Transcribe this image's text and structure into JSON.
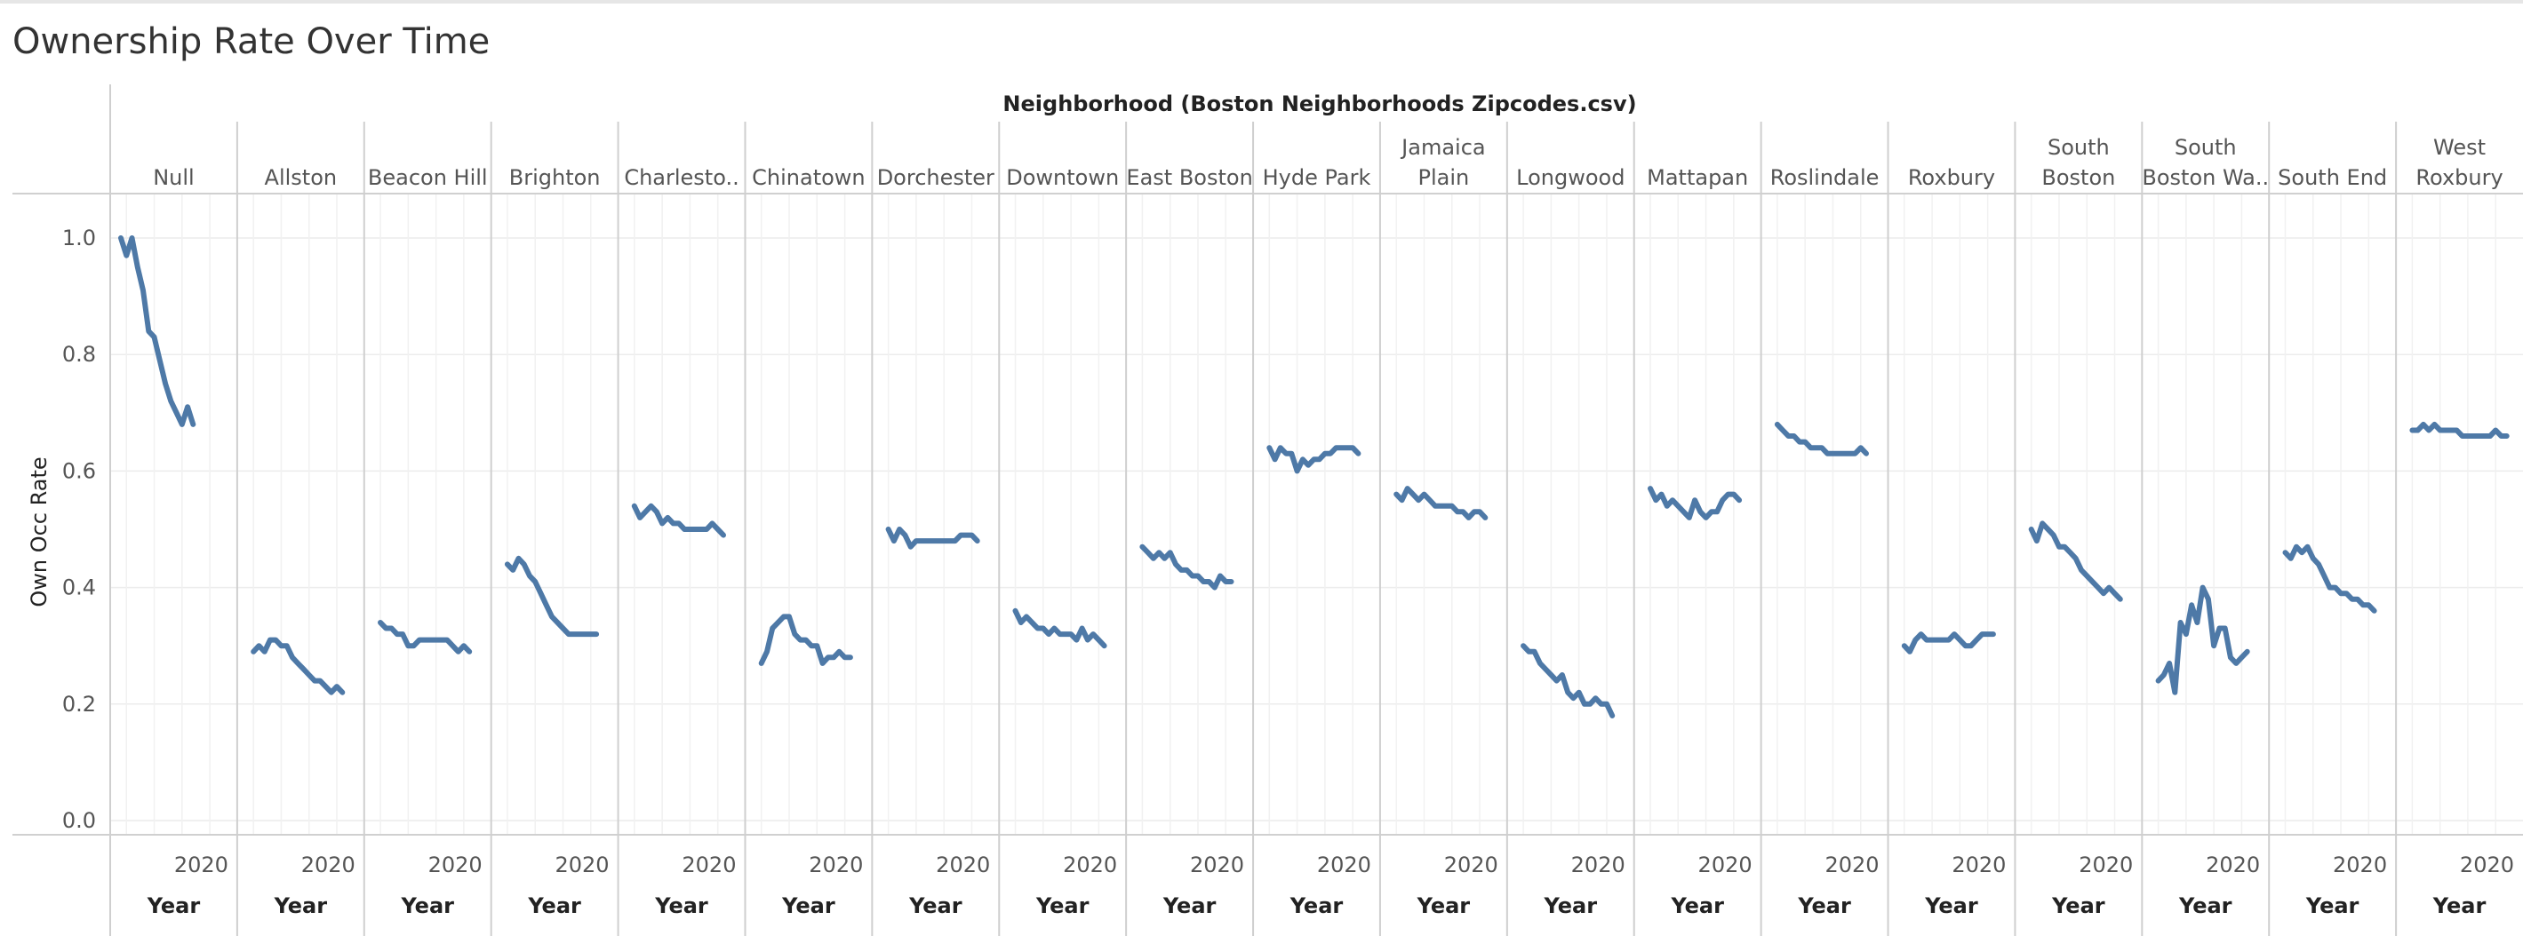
{
  "title": "Ownership Rate Over Time",
  "chart_data": {
    "type": "line",
    "title": "Ownership Rate Over Time",
    "column_dimension_title": "Neighborhood (Boston Neighborhoods Zipcodes.csv)",
    "ylabel": "Own Occ Rate",
    "xlabel": "Year",
    "ylim": [
      0,
      1.05
    ],
    "y_ticks": [
      "1.0",
      "0.8",
      "0.6",
      "0.4",
      "0.2",
      "0.0"
    ],
    "x_tick_label": "2020",
    "x_range": [
      2004,
      2023
    ],
    "grid": true,
    "line_color": "#4e79a7",
    "series": [
      {
        "name": "Null",
        "x": [
          2004,
          2005,
          2006,
          2007,
          2008,
          2009,
          2010,
          2011,
          2012,
          2013,
          2014,
          2015,
          2016,
          2017,
          2018,
          2019,
          2020,
          2021
        ],
        "values": [
          1.0,
          0.97,
          1.0,
          0.95,
          0.91,
          0.84,
          0.83,
          0.79,
          0.75,
          0.72,
          0.7,
          0.68,
          0.71,
          0.68,
          null,
          null,
          null,
          null
        ]
      },
      {
        "name": "Allston",
        "x": [
          2005,
          2006,
          2007,
          2008,
          2009,
          2010,
          2011,
          2012,
          2013,
          2014,
          2015,
          2016,
          2017,
          2018,
          2019,
          2020,
          2021
        ],
        "values": [
          0.29,
          0.3,
          0.29,
          0.31,
          0.31,
          0.3,
          0.3,
          0.28,
          0.27,
          0.26,
          0.25,
          0.24,
          0.24,
          0.23,
          0.22,
          0.23,
          0.22
        ]
      },
      {
        "name": "Beacon Hill",
        "x": [
          2005,
          2006,
          2007,
          2008,
          2009,
          2010,
          2011,
          2012,
          2013,
          2014,
          2015,
          2016,
          2017,
          2018,
          2019,
          2020,
          2021
        ],
        "values": [
          0.34,
          0.33,
          0.33,
          0.32,
          0.32,
          0.3,
          0.3,
          0.31,
          0.31,
          0.31,
          0.31,
          0.31,
          0.31,
          0.3,
          0.29,
          0.3,
          0.29
        ]
      },
      {
        "name": "Brighton",
        "x": [
          2005,
          2006,
          2007,
          2008,
          2009,
          2010,
          2011,
          2012,
          2013,
          2014,
          2015,
          2016,
          2017,
          2018,
          2019,
          2020,
          2021
        ],
        "values": [
          0.44,
          0.43,
          0.45,
          0.44,
          0.42,
          0.41,
          0.39,
          0.37,
          0.35,
          0.34,
          0.33,
          0.32,
          0.32,
          0.32,
          0.32,
          0.32,
          0.32
        ]
      },
      {
        "name": "Charlesto..",
        "x": [
          2005,
          2006,
          2007,
          2008,
          2009,
          2010,
          2011,
          2012,
          2013,
          2014,
          2015,
          2016,
          2017,
          2018,
          2019,
          2020,
          2021
        ],
        "values": [
          0.54,
          0.52,
          0.53,
          0.54,
          0.53,
          0.51,
          0.52,
          0.51,
          0.51,
          0.5,
          0.5,
          0.5,
          0.5,
          0.5,
          0.51,
          0.5,
          0.49
        ]
      },
      {
        "name": "Chinatown",
        "x": [
          2005,
          2006,
          2007,
          2008,
          2009,
          2010,
          2011,
          2012,
          2013,
          2014,
          2015,
          2016,
          2017,
          2018,
          2019,
          2020,
          2021
        ],
        "values": [
          0.27,
          0.29,
          0.33,
          0.34,
          0.35,
          0.35,
          0.32,
          0.31,
          0.31,
          0.3,
          0.3,
          0.27,
          0.28,
          0.28,
          0.29,
          0.28,
          0.28
        ]
      },
      {
        "name": "Dorchester",
        "x": [
          2005,
          2006,
          2007,
          2008,
          2009,
          2010,
          2011,
          2012,
          2013,
          2014,
          2015,
          2016,
          2017,
          2018,
          2019,
          2020,
          2021
        ],
        "values": [
          0.5,
          0.48,
          0.5,
          0.49,
          0.47,
          0.48,
          0.48,
          0.48,
          0.48,
          0.48,
          0.48,
          0.48,
          0.48,
          0.49,
          0.49,
          0.49,
          0.48
        ]
      },
      {
        "name": "Downtown",
        "x": [
          2005,
          2006,
          2007,
          2008,
          2009,
          2010,
          2011,
          2012,
          2013,
          2014,
          2015,
          2016,
          2017,
          2018,
          2019,
          2020,
          2021
        ],
        "values": [
          0.36,
          0.34,
          0.35,
          0.34,
          0.33,
          0.33,
          0.32,
          0.33,
          0.32,
          0.32,
          0.32,
          0.31,
          0.33,
          0.31,
          0.32,
          0.31,
          0.3
        ]
      },
      {
        "name": "East Boston",
        "x": [
          2005,
          2006,
          2007,
          2008,
          2009,
          2010,
          2011,
          2012,
          2013,
          2014,
          2015,
          2016,
          2017,
          2018,
          2019,
          2020,
          2021
        ],
        "values": [
          0.47,
          0.46,
          0.45,
          0.46,
          0.45,
          0.46,
          0.44,
          0.43,
          0.43,
          0.42,
          0.42,
          0.41,
          0.41,
          0.4,
          0.42,
          0.41,
          0.41
        ]
      },
      {
        "name": "Hyde Park",
        "x": [
          2005,
          2006,
          2007,
          2008,
          2009,
          2010,
          2011,
          2012,
          2013,
          2014,
          2015,
          2016,
          2017,
          2018,
          2019,
          2020,
          2021
        ],
        "values": [
          0.64,
          0.62,
          0.64,
          0.63,
          0.63,
          0.6,
          0.62,
          0.61,
          0.62,
          0.62,
          0.63,
          0.63,
          0.64,
          0.64,
          0.64,
          0.64,
          0.63
        ]
      },
      {
        "name": "Jamaica Plain",
        "x": [
          2005,
          2006,
          2007,
          2008,
          2009,
          2010,
          2011,
          2012,
          2013,
          2014,
          2015,
          2016,
          2017,
          2018,
          2019,
          2020,
          2021
        ],
        "values": [
          0.56,
          0.55,
          0.57,
          0.56,
          0.55,
          0.56,
          0.55,
          0.54,
          0.54,
          0.54,
          0.54,
          0.53,
          0.53,
          0.52,
          0.53,
          0.53,
          0.52
        ]
      },
      {
        "name": "Longwood",
        "x": [
          2005,
          2006,
          2007,
          2008,
          2009,
          2010,
          2011,
          2012,
          2013,
          2014,
          2015,
          2016,
          2017,
          2018,
          2019,
          2020,
          2021
        ],
        "values": [
          0.3,
          0.29,
          0.29,
          0.27,
          0.26,
          0.25,
          0.24,
          0.25,
          0.22,
          0.21,
          0.22,
          0.2,
          0.2,
          0.21,
          0.2,
          0.2,
          0.18
        ]
      },
      {
        "name": "Mattapan",
        "x": [
          2005,
          2006,
          2007,
          2008,
          2009,
          2010,
          2011,
          2012,
          2013,
          2014,
          2015,
          2016,
          2017,
          2018,
          2019,
          2020,
          2021
        ],
        "values": [
          0.57,
          0.55,
          0.56,
          0.54,
          0.55,
          0.54,
          0.53,
          0.52,
          0.55,
          0.53,
          0.52,
          0.53,
          0.53,
          0.55,
          0.56,
          0.56,
          0.55
        ]
      },
      {
        "name": "Roslindale",
        "x": [
          2005,
          2006,
          2007,
          2008,
          2009,
          2010,
          2011,
          2012,
          2013,
          2014,
          2015,
          2016,
          2017,
          2018,
          2019,
          2020,
          2021
        ],
        "values": [
          0.68,
          0.67,
          0.66,
          0.66,
          0.65,
          0.65,
          0.64,
          0.64,
          0.64,
          0.63,
          0.63,
          0.63,
          0.63,
          0.63,
          0.63,
          0.64,
          0.63
        ]
      },
      {
        "name": "Roxbury",
        "x": [
          2005,
          2006,
          2007,
          2008,
          2009,
          2010,
          2011,
          2012,
          2013,
          2014,
          2015,
          2016,
          2017,
          2018,
          2019,
          2020,
          2021
        ],
        "values": [
          0.3,
          0.29,
          0.31,
          0.32,
          0.31,
          0.31,
          0.31,
          0.31,
          0.31,
          0.32,
          0.31,
          0.3,
          0.3,
          0.31,
          0.32,
          0.32,
          0.32
        ]
      },
      {
        "name": "South Boston",
        "x": [
          2005,
          2006,
          2007,
          2008,
          2009,
          2010,
          2011,
          2012,
          2013,
          2014,
          2015,
          2016,
          2017,
          2018,
          2019,
          2020,
          2021
        ],
        "values": [
          0.5,
          0.48,
          0.51,
          0.5,
          0.49,
          0.47,
          0.47,
          0.46,
          0.45,
          0.43,
          0.42,
          0.41,
          0.4,
          0.39,
          0.4,
          0.39,
          0.38
        ]
      },
      {
        "name": "South Boston Wa..",
        "x": [
          2005,
          2006,
          2007,
          2008,
          2009,
          2010,
          2011,
          2012,
          2013,
          2014,
          2015,
          2016,
          2017,
          2018,
          2019,
          2020,
          2021
        ],
        "values": [
          0.24,
          0.25,
          0.27,
          0.22,
          0.34,
          0.32,
          0.37,
          0.34,
          0.4,
          0.38,
          0.3,
          0.33,
          0.33,
          0.28,
          0.27,
          0.28,
          0.29
        ]
      },
      {
        "name": "South End",
        "x": [
          2005,
          2006,
          2007,
          2008,
          2009,
          2010,
          2011,
          2012,
          2013,
          2014,
          2015,
          2016,
          2017,
          2018,
          2019,
          2020,
          2021
        ],
        "values": [
          0.46,
          0.45,
          0.47,
          0.46,
          0.47,
          0.45,
          0.44,
          0.42,
          0.4,
          0.4,
          0.39,
          0.39,
          0.38,
          0.38,
          0.37,
          0.37,
          0.36
        ]
      },
      {
        "name": "West Roxbury",
        "x": [
          2005,
          2006,
          2007,
          2008,
          2009,
          2010,
          2011,
          2012,
          2013,
          2014,
          2015,
          2016,
          2017,
          2018,
          2019,
          2020,
          2021,
          2022
        ],
        "values": [
          0.67,
          0.67,
          0.68,
          0.67,
          0.68,
          0.67,
          0.67,
          0.67,
          0.67,
          0.66,
          0.66,
          0.66,
          0.66,
          0.66,
          0.66,
          0.67,
          0.66,
          0.66
        ]
      }
    ]
  }
}
